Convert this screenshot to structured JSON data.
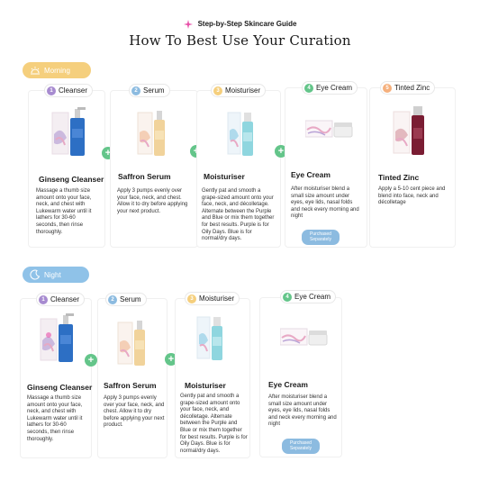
{
  "header": {
    "subtitle": "Step-by-Step Skincare Guide",
    "title": "How To Best Use Your Curation",
    "spark_icon": "sparkle-icon",
    "spark_color": "#e84fa8"
  },
  "colors": {
    "morning": "#f5cf7d",
    "night": "#8fc2e8",
    "plus": "#64c58a",
    "badge": "#8cbbe0"
  },
  "morning": {
    "label": "Morning",
    "icon": "sunrise-icon",
    "steps": [
      {
        "num": "1",
        "tag": "Cleanser",
        "name": "Ginseng Cleanser",
        "desc": "Massage a thumb size amount onto your face, neck, and chest with Lukewarm water until it lathers for 30-60 seconds, then rinse thoroughly."
      },
      {
        "num": "2",
        "tag": "Serum",
        "name": "Saffron Serum",
        "desc": "Apply 3 pumps evenly over your face, neck, and chest. Allow it to dry before applying your next product."
      },
      {
        "num": "3",
        "tag": "Moisturiser",
        "name": "Moisturiser",
        "desc": "Gently pat and smooth a grape-sized amount onto your face, neck, and décolletage. Alternate between the Purple and Blue or mix them together for best results. Purple is for Oily Days. Blue is for normal/dry days."
      },
      {
        "num": "4",
        "tag": "Eye Cream",
        "name": "Eye Cream",
        "desc": "After moisturiser blend a small size amount under eyes, eye lids, nasal folds and neck every morning and night",
        "badge": "Purchased Separately"
      },
      {
        "num": "5",
        "tag": "Tinted Zinc",
        "name": "Tinted Zinc",
        "desc": "Apply a 5-10 cent piece and blend into face, neck and décolletage"
      }
    ]
  },
  "night": {
    "label": "Night",
    "icon": "moon-icon",
    "steps": [
      {
        "num": "1",
        "tag": "Cleanser",
        "name": "Ginseng  Cleanser",
        "desc": "Massage a thumb size amount onto your face, neck, and chest with Lukewarm water until it lathers for 30-60 seconds, then rinse thoroughly."
      },
      {
        "num": "2",
        "tag": "Serum",
        "name": "Saffron Serum",
        "desc": "Apply 3 pumps evenly over your face, neck, and chest. Allow it to dry before applying your next product."
      },
      {
        "num": "3",
        "tag": "Moisturiser",
        "name": "Moisturiser",
        "desc": "Gently pat and smooth a grape-sized amount onto your face, neck, and décolletage. Alternate between the Purple and Blue or mix them together for best results. Purple is for Oily Days. Blue is for normal/dry days."
      },
      {
        "num": "4",
        "tag": "Eye Cream",
        "name": "Eye Cream",
        "desc": "After moisturiser blend a small size amount under eyes, eye lids, nasal folds and neck every morning and night",
        "badge": "Purchased Separately"
      }
    ]
  }
}
